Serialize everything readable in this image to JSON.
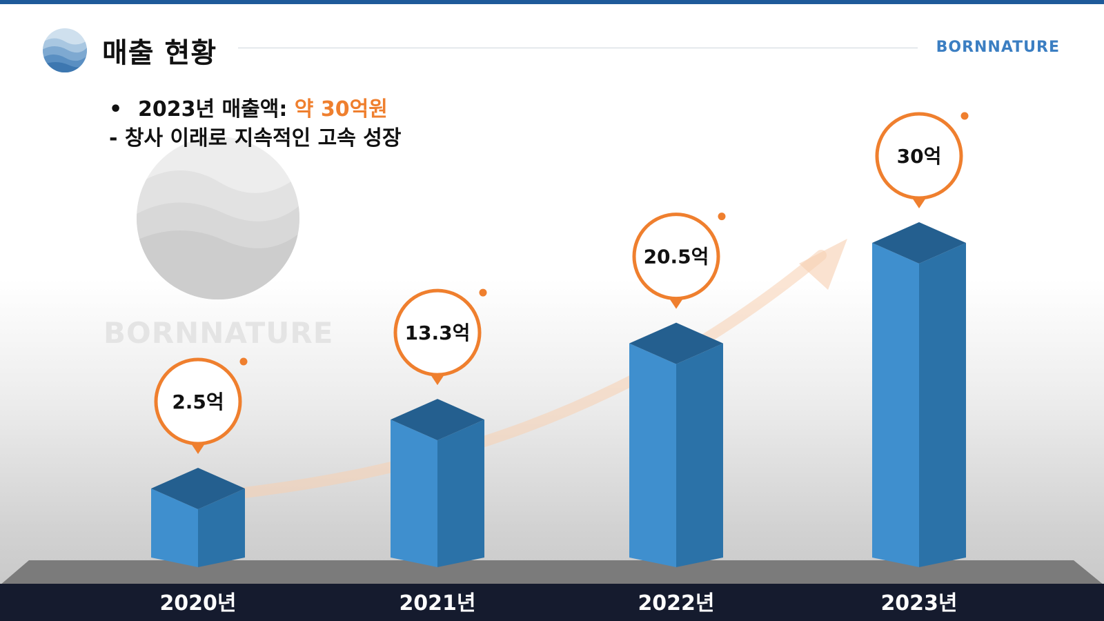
{
  "header": {
    "title": "매출 현황",
    "brand": "BORNNATURE"
  },
  "bullets": {
    "line1_bullet": "•",
    "line1_prefix": "2023년  매출액: ",
    "line1_highlight": "약 30억원",
    "line2": "- 창사 이래로 지속적인 고속 성장"
  },
  "watermark": {
    "brand": "BORNNATURE"
  },
  "colors": {
    "accent": "#ef7f2e",
    "bar_front": "#3f8fce",
    "bar_side": "#2b72a8",
    "bar_top": "#245f8f",
    "floor": "#7b7b7b",
    "footer": "#151b2e",
    "brand": "#3b7ec2"
  },
  "chart_data": {
    "type": "bar",
    "categories": [
      "2020년",
      "2021년",
      "2022년",
      "2023년"
    ],
    "values": [
      2.5,
      13.3,
      20.5,
      30
    ],
    "value_labels": [
      "2.5억",
      "13.3억",
      "20.5억",
      "30억"
    ],
    "title": "",
    "xlabel": "",
    "ylabel": "",
    "ylim": [
      0,
      30
    ],
    "grid": false,
    "legend": "none"
  }
}
